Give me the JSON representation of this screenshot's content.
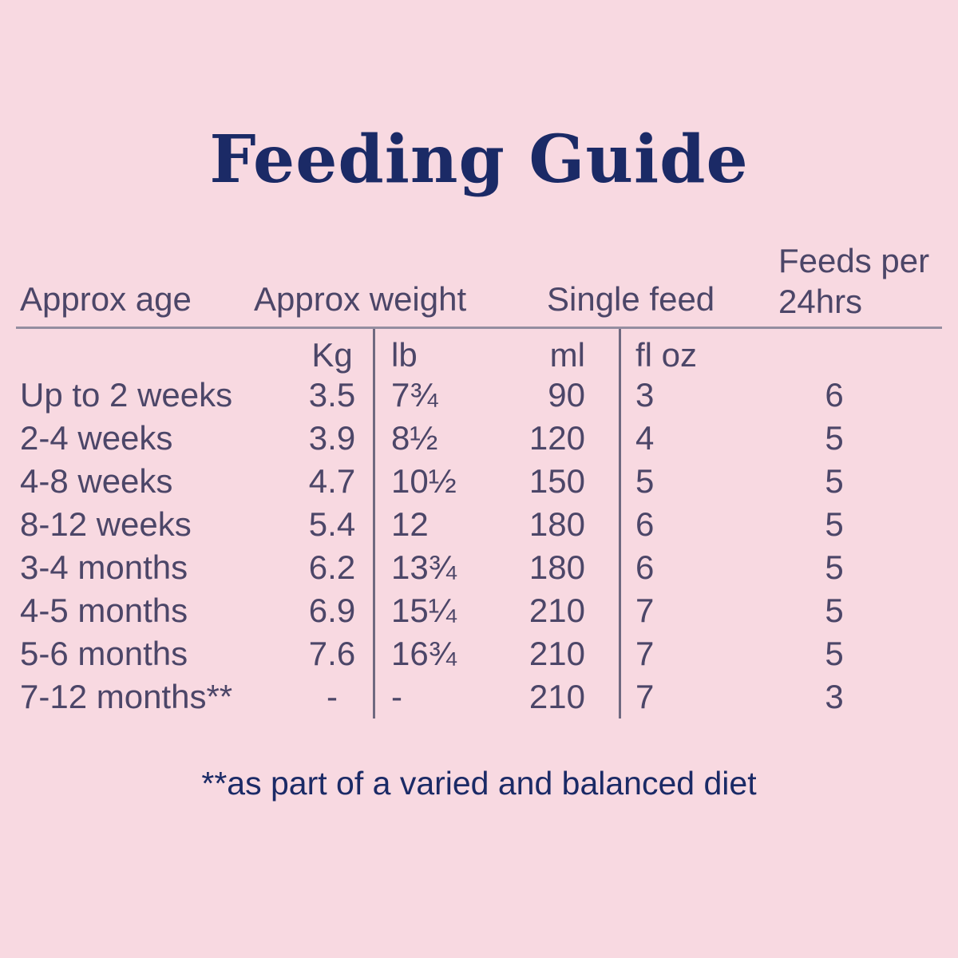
{
  "page": {
    "title": "Feeding Guide",
    "footnote": "**as part of a varied and balanced diet"
  },
  "colors": {
    "background": "#f8d9e1",
    "navy": "#1b2a66",
    "table_text": "#4c4668",
    "rule_line": "#948da0",
    "divider_line": "#6f6980"
  },
  "table": {
    "headers": {
      "age": "Approx age",
      "weight": "Approx weight",
      "single_feed": "Single feed",
      "feeds_per_line1": "Feeds per",
      "feeds_per_line2": "24hrs"
    },
    "units": {
      "kg": "Kg",
      "lb": "lb",
      "ml": "ml",
      "floz": "fl oz"
    },
    "rows": [
      {
        "age": "Up to 2 weeks",
        "kg": "3.5",
        "lb": "7¾",
        "ml": "90",
        "floz": "3",
        "feeds": "6"
      },
      {
        "age": "2-4 weeks",
        "kg": "3.9",
        "lb": "8½",
        "ml": "120",
        "floz": "4",
        "feeds": "5"
      },
      {
        "age": "4-8 weeks",
        "kg": "4.7",
        "lb": "10½",
        "ml": "150",
        "floz": "5",
        "feeds": "5"
      },
      {
        "age": "8-12 weeks",
        "kg": "5.4",
        "lb": "12",
        "ml": "180",
        "floz": "6",
        "feeds": "5"
      },
      {
        "age": "3-4 months",
        "kg": "6.2",
        "lb": "13¾",
        "ml": "180",
        "floz": "6",
        "feeds": "5"
      },
      {
        "age": "4-5 months",
        "kg": "6.9",
        "lb": "15¼",
        "ml": "210",
        "floz": "7",
        "feeds": "5"
      },
      {
        "age": "5-6 months",
        "kg": "7.6",
        "lb": "16¾",
        "ml": "210",
        "floz": "7",
        "feeds": "5"
      },
      {
        "age": "7-12 months**",
        "kg": "-",
        "lb": "-",
        "ml": "210",
        "floz": "7",
        "feeds": "3"
      }
    ]
  }
}
